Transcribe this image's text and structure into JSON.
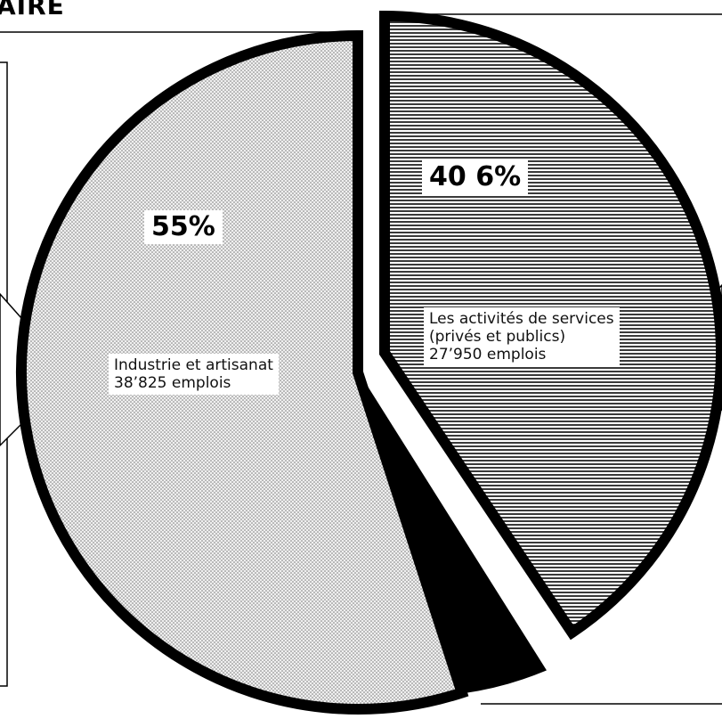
{
  "title": "AIRE",
  "chart_data": {
    "type": "pie",
    "title": "AIRE",
    "slices": [
      {
        "name": "Industrie et artisanat",
        "percent": 55,
        "percent_label": "55%",
        "detail_lines": [
          "Industrie et artisanat",
          "38’825 emplois"
        ]
      },
      {
        "name": "Les activités de services (privés et publics)",
        "percent": 40.6,
        "percent_label": "40 6%",
        "detail_lines": [
          "Les activités de services",
          "(privés et publics)",
          "27’950 emplois"
        ]
      },
      {
        "name": "",
        "percent": 4.4,
        "percent_label": "",
        "detail_lines": []
      }
    ],
    "colors": {
      "industry_fill": "#e2e2e2",
      "services_fill": "#6a6a6a",
      "small_fill": "#000000",
      "outline": "#000000"
    }
  }
}
